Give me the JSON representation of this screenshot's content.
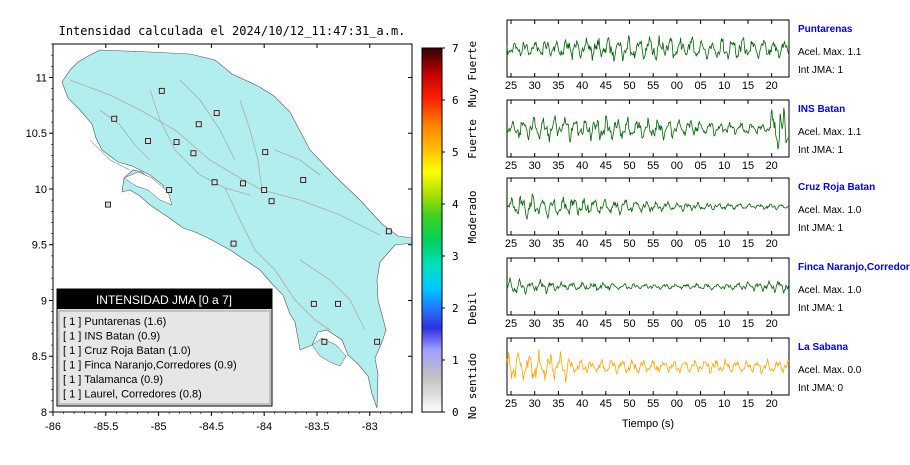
{
  "map": {
    "title": "Intensidad calculada el 2024/10/12_11:47:31_a.m.",
    "xticks": [
      "-86",
      "-85.5",
      "-85",
      "-84.5",
      "-84",
      "-83.5",
      "-83"
    ],
    "yticks": [
      "11",
      "10.5",
      "10",
      "9.5",
      "9",
      "8.5",
      "8"
    ],
    "legend_header": "INTENSIDAD JMA [0 a 7]",
    "legend_items": [
      "[ 1 ]  Puntarenas (1.6)",
      "[ 1 ]  INS Batan (0.9)",
      "[ 1 ]  Cruz Roja Batan (1.0)",
      "[ 1 ]  Finca Naranjo,Corredores (0.9)",
      "[ 1 ]  Talamanca (0.9)",
      "[ 1 ]  Laurel, Corredores (0.8)"
    ],
    "colors": {
      "land": "#b2eeee",
      "legend_header_bg": "#000000"
    }
  },
  "colorbar": {
    "ticks": [
      "0",
      "1",
      "2",
      "3",
      "4",
      "5",
      "6",
      "7"
    ],
    "labels": [
      "No sentido",
      "Debil",
      "Moderado",
      "Fuerte",
      "Muy Fuerte"
    ]
  },
  "panels": [
    {
      "name": "Puntarenas",
      "accel": "Acel. Max. 1.1",
      "int": "Int JMA: 1",
      "color": "#006400"
    },
    {
      "name": "INS Batan",
      "accel": "Acel. Max. 1.1",
      "int": "Int JMA: 1",
      "color": "#006400"
    },
    {
      "name": "Cruz Roja Batan",
      "accel": "Acel. Max. 1.0",
      "int": "Int JMA: 1",
      "color": "#006400"
    },
    {
      "name": "Finca Naranjo,Corredor",
      "accel": "Acel. Max. 1.0",
      "int": "Int JMA: 1",
      "color": "#006400"
    },
    {
      "name": "La Sabana",
      "accel": "Acel. Max. 0.0",
      "int": "Int JMA: 0",
      "color": "#ffa500"
    }
  ],
  "time_ticks": [
    "25",
    "30",
    "35",
    "40",
    "45",
    "50",
    "55",
    "00",
    "05",
    "10",
    "15",
    "20"
  ],
  "time_axis_label": "Tiempo (s)",
  "name_color": "#0000ee",
  "chart_data": [
    {
      "type": "scatter",
      "title": "Intensidad calculada el 2024/10/12_11:47:31_a.m.",
      "xlim": [
        -86,
        -82.6
      ],
      "ylim": [
        8,
        11.3
      ],
      "points": [
        {
          "lon": -84.97,
          "lat": 10.88
        },
        {
          "lon": -84.45,
          "lat": 10.68
        },
        {
          "lon": -84.62,
          "lat": 10.58
        },
        {
          "lon": -84.83,
          "lat": 10.42
        },
        {
          "lon": -85.42,
          "lat": 10.63
        },
        {
          "lon": -85.1,
          "lat": 10.43
        },
        {
          "lon": -84.67,
          "lat": 10.32
        },
        {
          "lon": -83.99,
          "lat": 10.33
        },
        {
          "lon": -83.63,
          "lat": 10.08
        },
        {
          "lon": -84.47,
          "lat": 10.06
        },
        {
          "lon": -84.2,
          "lat": 10.05
        },
        {
          "lon": -84.0,
          "lat": 9.99
        },
        {
          "lon": -83.93,
          "lat": 9.89
        },
        {
          "lon": -84.9,
          "lat": 9.99
        },
        {
          "lon": -85.48,
          "lat": 9.86
        },
        {
          "lon": -82.82,
          "lat": 9.62
        },
        {
          "lon": -84.29,
          "lat": 9.51
        },
        {
          "lon": -83.53,
          "lat": 8.97
        },
        {
          "lon": -83.3,
          "lat": 8.97
        },
        {
          "lon": -83.43,
          "lat": 8.63
        },
        {
          "lon": -82.93,
          "lat": 8.63
        }
      ]
    },
    {
      "type": "line",
      "x_ticks": [
        "25",
        "30",
        "35",
        "40",
        "45",
        "50",
        "55",
        "00",
        "05",
        "10",
        "15",
        "20"
      ],
      "xlabel": "Tiempo (s)",
      "series": [
        {
          "name": "Puntarenas"
        },
        {
          "name": "INS Batan"
        },
        {
          "name": "Cruz Roja Batan"
        },
        {
          "name": "Finca Naranjo,Corredor"
        },
        {
          "name": "La Sabana"
        }
      ]
    }
  ]
}
